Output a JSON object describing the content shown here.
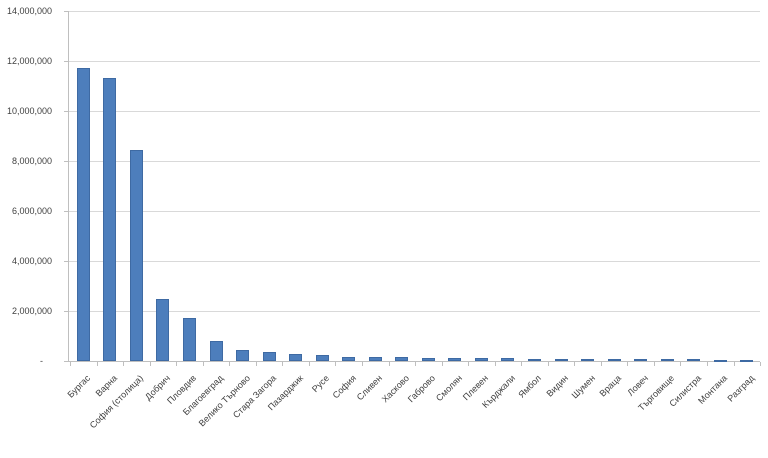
{
  "chart_data": {
    "type": "bar",
    "title": "",
    "xlabel": "",
    "ylabel": "",
    "legend": "none",
    "grid": true,
    "ylim": [
      0,
      14000000
    ],
    "ytick_step": 2000000,
    "ytick_labels": [
      "-",
      "2,000,000",
      "4,000,000",
      "6,000,000",
      "8,000,000",
      "10,000,000",
      "12,000,000",
      "14,000,000"
    ],
    "x_label_rotation": -45,
    "bar_color": "#4d7ebc",
    "bar_border_color": "#3e6aa3",
    "gridline_color": "#d9d9d9",
    "axis_color": "#bfbfbf",
    "label_color": "#3f3f3f",
    "categories": [
      "Бургас",
      "Варна",
      "София (столица)",
      "Добрич",
      "Пловдив",
      "Благоевград",
      "Велико Търново",
      "Стара Загора",
      "Пазарджик",
      "Русе",
      "София",
      "Сливен",
      "Хасково",
      "Габрово",
      "Смолян",
      "Плевен",
      "Кърджали",
      "Ямбол",
      "Видин",
      "Шумен",
      "Враца",
      "Ловеч",
      "Търговище",
      "Силистра",
      "Монтана",
      "Разград"
    ],
    "values": [
      11720000,
      11320000,
      8440000,
      2480000,
      1720000,
      790000,
      430000,
      360000,
      290000,
      240000,
      170000,
      150000,
      145000,
      140000,
      130000,
      120000,
      110000,
      100000,
      95000,
      90000,
      85000,
      80000,
      70000,
      65000,
      60000,
      50000
    ]
  }
}
